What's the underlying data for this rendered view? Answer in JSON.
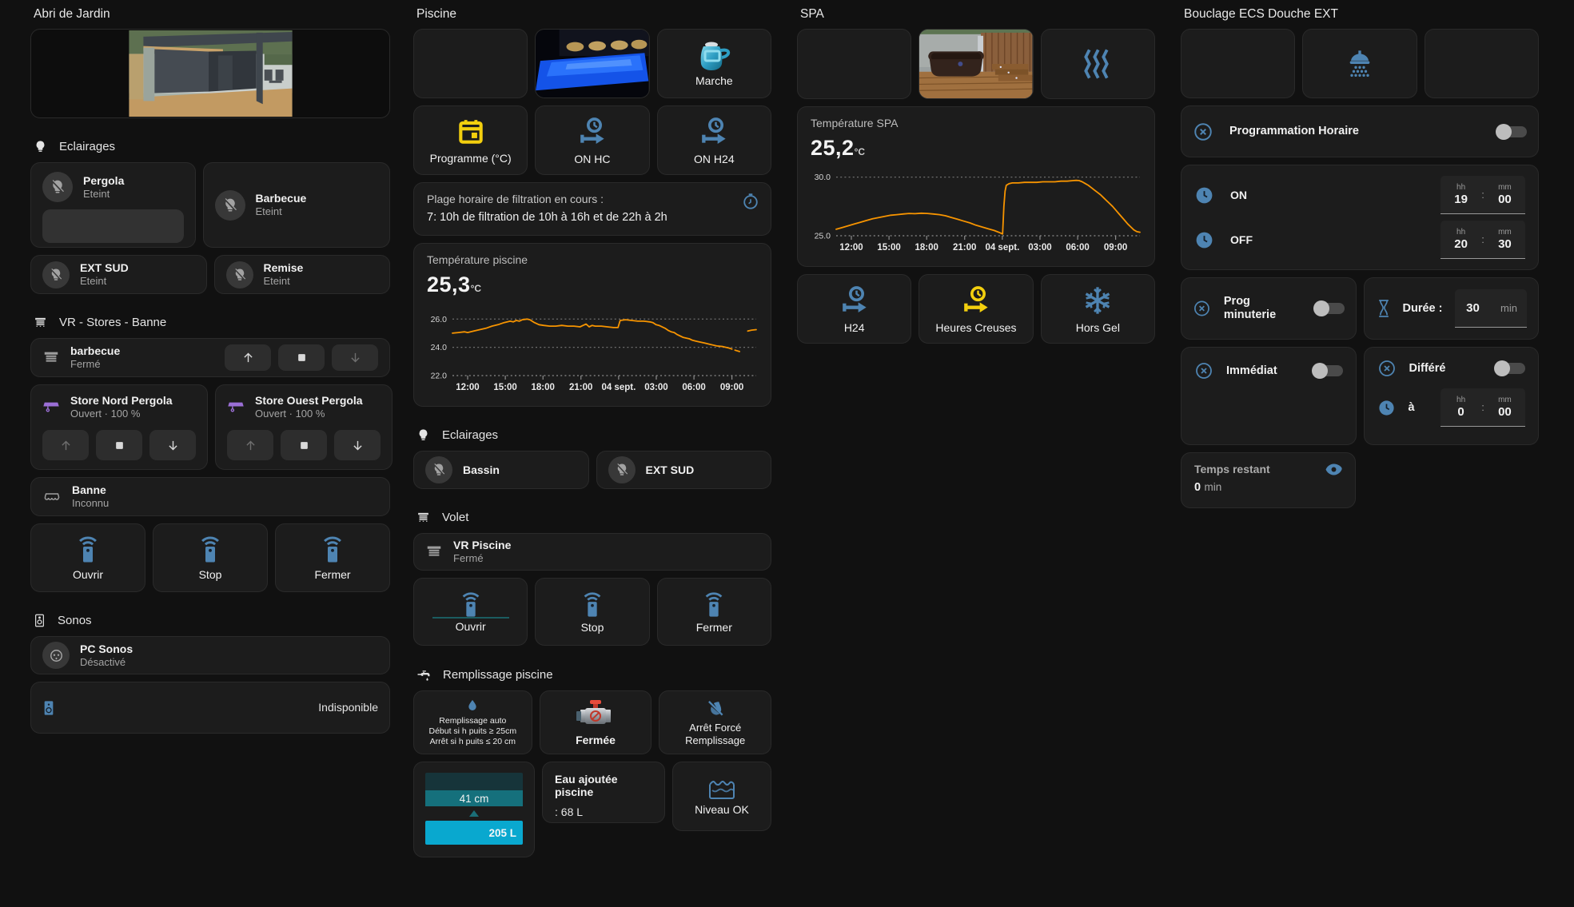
{
  "labels": {
    "hh": "hh",
    "mm": "mm",
    "colon": ":"
  },
  "colors": {
    "background": "#111111",
    "card": "#1c1c1c",
    "accent_blue": "#4e84b2",
    "accent_yellow": "#f3cf0e",
    "chart_orange": "#f79400",
    "awning_purple": "#9b6fd6",
    "gauge_teal": "#15707c",
    "gauge_cyan": "#09a8cf"
  },
  "abri": {
    "title": "Abri de Jardin",
    "eclairages_header": "Eclairages",
    "lights": [
      {
        "name": "Pergola",
        "state": "Eteint"
      },
      {
        "name": "Barbecue",
        "state": "Eteint"
      },
      {
        "name": "EXT SUD",
        "state": "Eteint"
      },
      {
        "name": "Remise",
        "state": "Eteint"
      }
    ],
    "stores_header": "VR - Stores - Banne",
    "covers": [
      {
        "name": "barbecue",
        "state": "Fermé"
      },
      {
        "name": "Store Nord Pergola",
        "state": "Ouvert · 100 %"
      },
      {
        "name": "Store Ouest Pergola",
        "state": "Ouvert · 100 %"
      },
      {
        "name": "Banne",
        "state": "Inconnu"
      }
    ],
    "remote_buttons": {
      "open": "Ouvrir",
      "stop": "Stop",
      "close": "Fermer"
    },
    "sonos_header": "Sonos",
    "sonos_plug": {
      "name": "PC Sonos",
      "state": "Désactivé"
    },
    "sonos_unavailable": "Indisponible"
  },
  "piscine": {
    "title": "Piscine",
    "marche_label": "Marche",
    "programme_label": "Programme (°C)",
    "on_hc_label": "ON HC",
    "on_h24_label": "ON H24",
    "plage_line1": "Plage horaire de filtration en cours :",
    "plage_line2": "7: 10h de filtration de 10h à 16h et de 22h à 2h",
    "temp_title": "Température piscine",
    "temp_value": "25,3",
    "temp_unit": "°C",
    "eclairages_header": "Eclairages",
    "lights": [
      {
        "name": "Bassin"
      },
      {
        "name": "EXT SUD"
      }
    ],
    "volet_header": "Volet",
    "volet": {
      "name": "VR Piscine",
      "state": "Fermé"
    },
    "remote_buttons": {
      "open": "Ouvrir",
      "stop": "Stop",
      "close": "Fermer"
    },
    "remplissage_header": "Remplissage piscine",
    "auto_lines": [
      "Remplissage auto",
      "Début si h puits ≥ 25cm",
      "Arrêt si h puits ≤ 20 cm"
    ],
    "valve_label": "Fermée",
    "arret_line1": "Arrêt Forcé",
    "arret_line2": "Remplissage",
    "gauge": {
      "cm": "41 cm",
      "litres": "205 L"
    },
    "eau_title": "Eau ajoutée piscine",
    "eau_value": ": 68 L",
    "niveau_label": "Niveau OK"
  },
  "spa": {
    "title": "SPA",
    "temp_title": "Température SPA",
    "temp_value": "25,2",
    "temp_unit": "°C",
    "h24_label": "H24",
    "hc_label": "Heures Creuses",
    "horsgel_label": "Hors Gel"
  },
  "ecs": {
    "title": "Bouclage ECS Douche EXT",
    "prog_horaire": "Programmation Horaire",
    "on_label": "ON",
    "off_label": "OFF",
    "on_time": {
      "h": "19",
      "m": "00"
    },
    "off_time": {
      "h": "20",
      "m": "30"
    },
    "prog_minuterie": "Prog minuterie",
    "duree_label": "Durée :",
    "duree_value": "30",
    "duree_unit": "min",
    "immediat": "Immédiat",
    "differe": "Différé",
    "a_label": "à",
    "differe_time": {
      "h": "0",
      "m": "00"
    },
    "temps_restant": "Temps restant",
    "temps_value": "0",
    "temps_unit": "min"
  },
  "chart_data": [
    {
      "id": "pool",
      "type": "line",
      "title": "Température piscine",
      "unit": "°C",
      "color": "#f79400",
      "ylim": [
        22.0,
        26.75
      ],
      "grid": "dotted",
      "legend": "none",
      "yticks": [
        {
          "v": 26.0,
          "label": "26.0",
          "axis": false
        },
        {
          "v": 24.0,
          "label": "24.0",
          "axis": false
        },
        {
          "v": 22.0,
          "label": "22.0",
          "axis": true
        }
      ],
      "xticks": [
        {
          "f": 0.05,
          "label": "12:00"
        },
        {
          "f": 0.174,
          "label": "15:00"
        },
        {
          "f": 0.298,
          "label": "18:00"
        },
        {
          "f": 0.423,
          "label": "21:00"
        },
        {
          "f": 0.547,
          "label": "04 sept."
        },
        {
          "f": 0.671,
          "label": "03:00"
        },
        {
          "f": 0.795,
          "label": "06:00"
        },
        {
          "f": 0.92,
          "label": "09:00"
        }
      ],
      "segments": [
        [
          [
            0.0,
            25.0
          ],
          [
            0.02,
            25.05
          ],
          [
            0.04,
            25.1
          ],
          [
            0.05,
            25.05
          ],
          [
            0.07,
            25.15
          ],
          [
            0.09,
            25.25
          ],
          [
            0.11,
            25.35
          ],
          [
            0.13,
            25.5
          ],
          [
            0.15,
            25.6
          ],
          [
            0.17,
            25.75
          ],
          [
            0.19,
            25.85
          ],
          [
            0.2,
            25.8
          ],
          [
            0.21,
            25.9
          ],
          [
            0.22,
            25.85
          ],
          [
            0.23,
            25.95
          ],
          [
            0.245,
            26.0
          ],
          [
            0.255,
            25.95
          ],
          [
            0.27,
            25.75
          ],
          [
            0.285,
            25.6
          ],
          [
            0.3,
            25.55
          ],
          [
            0.32,
            25.5
          ],
          [
            0.34,
            25.5
          ],
          [
            0.36,
            25.55
          ],
          [
            0.38,
            25.5
          ],
          [
            0.4,
            25.5
          ],
          [
            0.42,
            25.45
          ],
          [
            0.43,
            25.55
          ],
          [
            0.44,
            25.65
          ],
          [
            0.45,
            25.45
          ],
          [
            0.46,
            25.55
          ],
          [
            0.47,
            25.5
          ],
          [
            0.49,
            25.5
          ],
          [
            0.51,
            25.45
          ],
          [
            0.53,
            25.4
          ],
          [
            0.545,
            25.4
          ],
          [
            0.552,
            25.9
          ],
          [
            0.57,
            25.95
          ],
          [
            0.59,
            25.9
          ],
          [
            0.61,
            25.85
          ],
          [
            0.63,
            25.85
          ],
          [
            0.65,
            25.8
          ],
          [
            0.66,
            25.75
          ],
          [
            0.67,
            25.6
          ],
          [
            0.68,
            25.55
          ],
          [
            0.7,
            25.35
          ],
          [
            0.71,
            25.2
          ],
          [
            0.72,
            25.1
          ],
          [
            0.73,
            25.05
          ],
          [
            0.74,
            24.9
          ],
          [
            0.75,
            24.8
          ],
          [
            0.76,
            24.7
          ],
          [
            0.77,
            24.65
          ],
          [
            0.78,
            24.6
          ],
          [
            0.79,
            24.5
          ],
          [
            0.8,
            24.45
          ],
          [
            0.81,
            24.4
          ],
          [
            0.83,
            24.3
          ],
          [
            0.85,
            24.2
          ],
          [
            0.87,
            24.1
          ],
          [
            0.89,
            24.05
          ],
          [
            0.9,
            24.0
          ],
          [
            0.91,
            23.95
          ],
          [
            0.92,
            23.88
          ]
        ],
        [
          [
            0.93,
            23.8
          ],
          [
            0.945,
            23.7
          ]
        ],
        [
          [
            0.972,
            25.15
          ],
          [
            0.985,
            25.22
          ],
          [
            1.0,
            25.25
          ]
        ]
      ]
    },
    {
      "id": "spa",
      "type": "line",
      "title": "Température SPA",
      "unit": "°C",
      "color": "#f79400",
      "ylim": [
        25.0,
        30.45
      ],
      "grid": "dotted",
      "legend": "none",
      "yticks": [
        {
          "v": 30.0,
          "label": "30.0",
          "axis": false
        },
        {
          "v": 25.0,
          "label": "25.0",
          "axis": true
        }
      ],
      "xticks": [
        {
          "f": 0.05,
          "label": "12:00"
        },
        {
          "f": 0.174,
          "label": "15:00"
        },
        {
          "f": 0.298,
          "label": "18:00"
        },
        {
          "f": 0.423,
          "label": "21:00"
        },
        {
          "f": 0.547,
          "label": "04 sept."
        },
        {
          "f": 0.671,
          "label": "03:00"
        },
        {
          "f": 0.795,
          "label": "06:00"
        },
        {
          "f": 0.92,
          "label": "09:00"
        }
      ],
      "segments": [
        [
          [
            0.0,
            25.55
          ],
          [
            0.02,
            25.7
          ],
          [
            0.04,
            25.85
          ],
          [
            0.06,
            26.0
          ],
          [
            0.08,
            26.15
          ],
          [
            0.1,
            26.3
          ],
          [
            0.12,
            26.45
          ],
          [
            0.14,
            26.55
          ],
          [
            0.16,
            26.65
          ],
          [
            0.18,
            26.75
          ],
          [
            0.2,
            26.8
          ],
          [
            0.22,
            26.85
          ],
          [
            0.24,
            26.9
          ],
          [
            0.26,
            26.88
          ],
          [
            0.28,
            26.92
          ],
          [
            0.3,
            26.9
          ],
          [
            0.32,
            26.85
          ],
          [
            0.34,
            26.8
          ],
          [
            0.36,
            26.7
          ],
          [
            0.38,
            26.55
          ],
          [
            0.4,
            26.4
          ],
          [
            0.42,
            26.25
          ],
          [
            0.44,
            26.1
          ],
          [
            0.46,
            25.9
          ],
          [
            0.48,
            25.75
          ],
          [
            0.5,
            25.6
          ],
          [
            0.52,
            25.45
          ],
          [
            0.535,
            25.3
          ],
          [
            0.548,
            25.15
          ],
          [
            0.552,
            27.5
          ],
          [
            0.556,
            28.8
          ],
          [
            0.56,
            29.3
          ],
          [
            0.57,
            29.45
          ],
          [
            0.58,
            29.5
          ],
          [
            0.6,
            29.5
          ],
          [
            0.62,
            29.55
          ],
          [
            0.64,
            29.55
          ],
          [
            0.66,
            29.55
          ],
          [
            0.68,
            29.6
          ],
          [
            0.7,
            29.6
          ],
          [
            0.72,
            29.6
          ],
          [
            0.74,
            29.65
          ],
          [
            0.76,
            29.65
          ],
          [
            0.78,
            29.7
          ],
          [
            0.79,
            29.72
          ],
          [
            0.8,
            29.7
          ],
          [
            0.81,
            29.6
          ],
          [
            0.82,
            29.45
          ],
          [
            0.83,
            29.3
          ],
          [
            0.84,
            29.1
          ],
          [
            0.85,
            28.9
          ],
          [
            0.86,
            28.7
          ],
          [
            0.87,
            28.5
          ],
          [
            0.88,
            28.25
          ],
          [
            0.89,
            28.0
          ],
          [
            0.9,
            27.75
          ],
          [
            0.91,
            27.5
          ],
          [
            0.92,
            27.2
          ],
          [
            0.93,
            26.9
          ],
          [
            0.94,
            26.6
          ],
          [
            0.95,
            26.3
          ],
          [
            0.96,
            26.0
          ],
          [
            0.97,
            25.75
          ],
          [
            0.98,
            25.5
          ],
          [
            0.99,
            25.35
          ],
          [
            1.0,
            25.3
          ]
        ]
      ]
    }
  ]
}
